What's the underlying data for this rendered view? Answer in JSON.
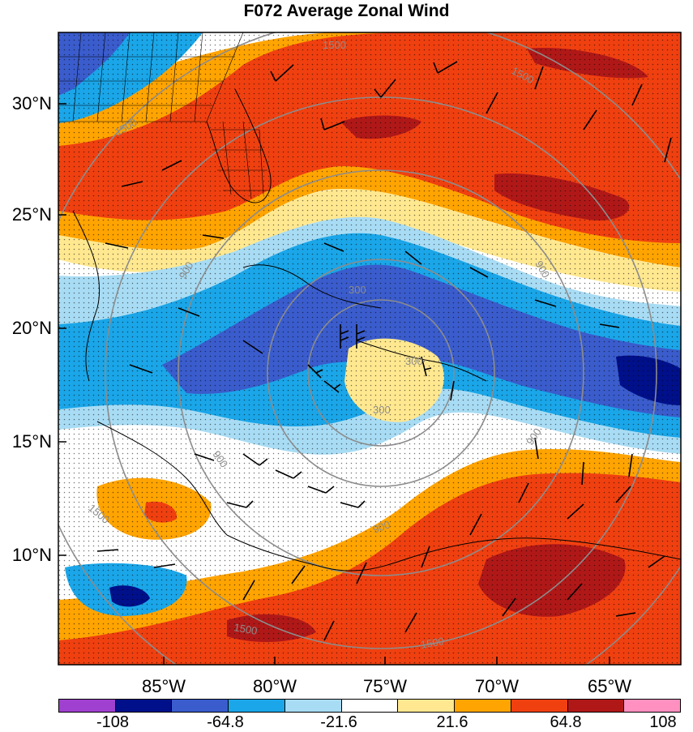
{
  "title": "F072 Average Zonal Wind",
  "lat_labels": [
    "30°N",
    "25°N",
    "20°N",
    "15°N",
    "10°N"
  ],
  "lon_labels": [
    "85°W",
    "80°W",
    "75°W",
    "70°W",
    "65°W"
  ],
  "colorbar": {
    "colors": [
      "#a040d0",
      "#00108a",
      "#3a5ccc",
      "#1aa6e8",
      "#a8dcf4",
      "#ffffff",
      "#ffe890",
      "#ffa400",
      "#f04010",
      "#b01818",
      "#ff90c0"
    ],
    "labels": [
      "-108",
      "-64.8",
      "-21.6",
      "21.6",
      "64.8",
      "108"
    ]
  },
  "contour_labels": [
    "1500",
    "1500",
    "900",
    "900",
    "300",
    "300",
    "900",
    "900",
    "900",
    "1500",
    "1500",
    "1500",
    "1500",
    "300"
  ]
}
